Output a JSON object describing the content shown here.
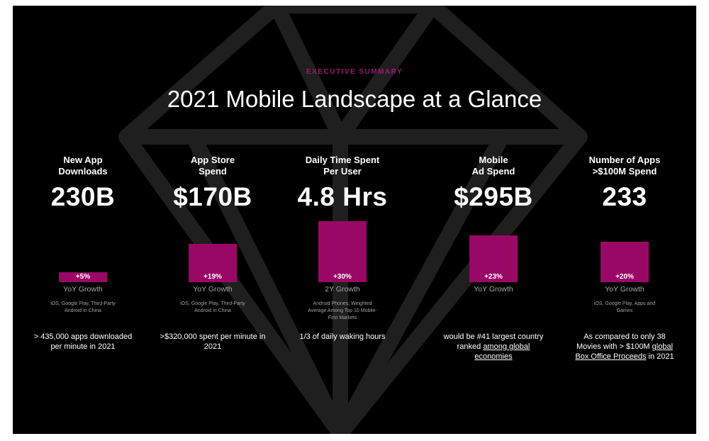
{
  "header": {
    "eyebrow": "EXECUTIVE SUMMARY",
    "title": "2021 Mobile Landscape at a Glance"
  },
  "colors": {
    "background": "#000000",
    "accent": "#9a0866",
    "eyebrow": "#9b1a78",
    "gem_outline": "#1f1f1f"
  },
  "chart_data": {
    "type": "bar",
    "title": "2021 Mobile Landscape at a Glance",
    "categories": [
      "New App Downloads",
      "App Store Spend",
      "Daily Time Spent Per User",
      "Mobile Ad Spend",
      "Number of Apps >$100M Spend"
    ],
    "series": [
      {
        "values": [
          5,
          19,
          30,
          23,
          20
        ]
      }
    ],
    "ylim": [
      0,
      30
    ],
    "grid": false,
    "legend": "none"
  },
  "metrics": [
    {
      "title": [
        "New App",
        "Downloads"
      ],
      "value": "230B",
      "growth_pct": 5,
      "growth_label": "+5%",
      "growth_type": "YoY Growth",
      "note": "iOS, Google Play, Third-Party Android in China",
      "fact_parts": [
        {
          "text": "> 435,000 apps downloaded per minute in 2021",
          "u": false
        }
      ]
    },
    {
      "title": [
        "App Store",
        "Spend"
      ],
      "value": "$170B",
      "growth_pct": 19,
      "growth_label": "+19%",
      "growth_type": "YoY Growth",
      "note": "iOS, Google Play, Third-Party Android in China",
      "fact_parts": [
        {
          "text": ">$320,000 spent per minute in 2021",
          "u": false
        }
      ]
    },
    {
      "title": [
        "Daily Time Spent",
        "Per User"
      ],
      "value": "4.8 Hrs",
      "growth_pct": 30,
      "growth_label": "+30%",
      "growth_type": "2Y Growth",
      "note": "Android Phones; Weighted Average Among Top 10 Mobile-First Markets",
      "fact_parts": [
        {
          "text": "1/3 of daily waking hours",
          "u": false
        }
      ]
    },
    {
      "title": [
        "Mobile",
        "Ad Spend"
      ],
      "value": "$295B",
      "growth_pct": 23,
      "growth_label": "+23%",
      "growth_type": "YoY Growth",
      "note": "",
      "fact_parts": [
        {
          "text": "would be #41 largest country ranked ",
          "u": false
        },
        {
          "text": "among global economies",
          "u": true
        }
      ]
    },
    {
      "title": [
        "Number of Apps",
        ">$100M Spend"
      ],
      "value": "233",
      "growth_pct": 20,
      "growth_label": "+20%",
      "growth_type": "YoY Growth",
      "note": "iOS, Google Play, Apps and Games",
      "fact_parts": [
        {
          "text": "As compared to only 38 Movies with > $100M ",
          "u": false
        },
        {
          "text": "global Box Office Proceeds",
          "u": true
        },
        {
          "text": " in 2021",
          "u": false
        }
      ]
    }
  ]
}
